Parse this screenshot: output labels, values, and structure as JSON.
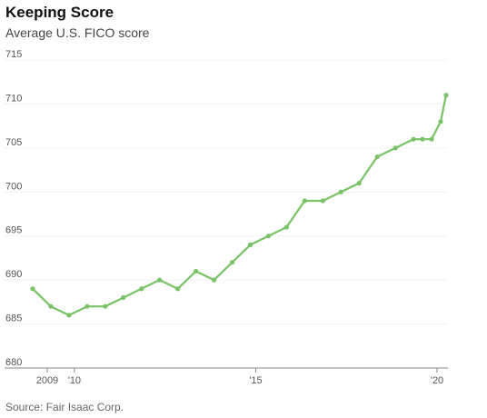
{
  "title": "Keeping Score",
  "subtitle": "Average U.S. FICO score",
  "source": "Source: Fair Isaac Corp.",
  "chart_data": {
    "type": "line",
    "title": "Keeping Score",
    "subtitle": "Average U.S. FICO score",
    "xlabel": "",
    "ylabel": "",
    "ylim": [
      680,
      715
    ],
    "xlim": [
      2008.75,
      2020.3
    ],
    "yticks": [
      680,
      685,
      690,
      695,
      700,
      705,
      710,
      715
    ],
    "xticks": [
      {
        "value": 2009.25,
        "label": "2009"
      },
      {
        "value": 2010,
        "label": "'10"
      },
      {
        "value": 2015,
        "label": "'15"
      },
      {
        "value": 2020,
        "label": "'20"
      }
    ],
    "grid": true,
    "line_color": "#79c266",
    "series": [
      {
        "x": [
          2008.85,
          2009.35,
          2009.85,
          2010.35,
          2010.85,
          2011.35,
          2011.85,
          2012.35,
          2012.85,
          2013.35,
          2013.85,
          2014.35,
          2014.85,
          2015.35,
          2015.85,
          2016.35,
          2016.85,
          2017.35,
          2017.85,
          2018.35,
          2018.85,
          2019.35,
          2019.6,
          2019.85,
          2020.1,
          2020.25
        ],
        "values": [
          689,
          687,
          686,
          687,
          687,
          688,
          689,
          690,
          689,
          691,
          690,
          692,
          694,
          695,
          696,
          699,
          699,
          700,
          701,
          704,
          705,
          706,
          706,
          706,
          708,
          711
        ]
      }
    ]
  }
}
